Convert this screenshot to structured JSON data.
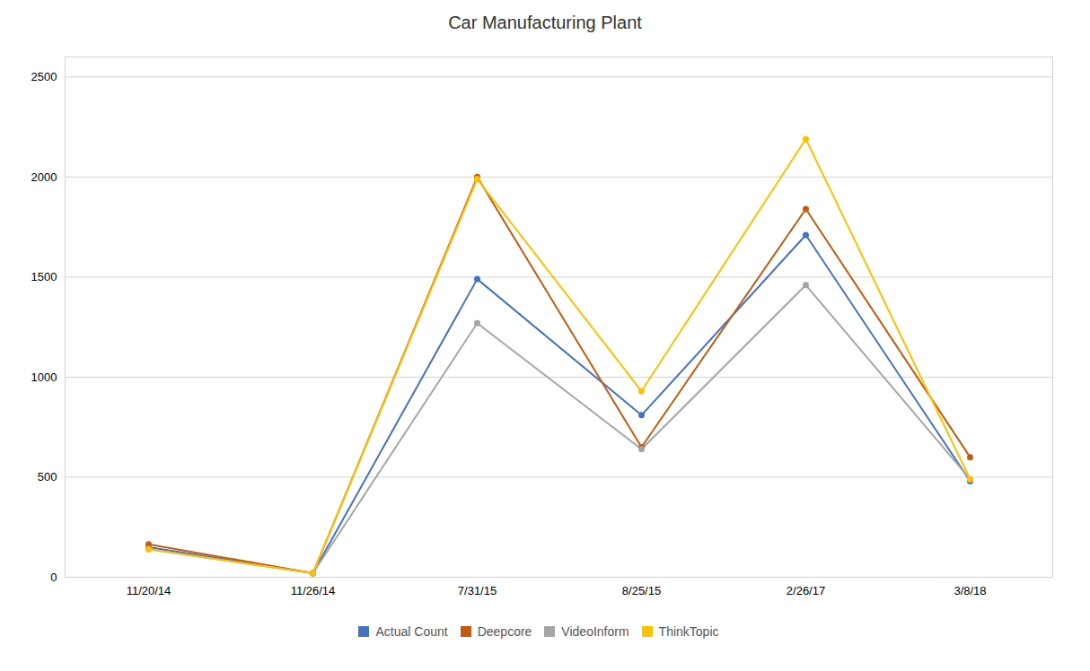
{
  "chart_data": {
    "type": "line",
    "title": "Car Manufacturing Plant",
    "categories": [
      "11/20/14",
      "11/26/14",
      "7/31/15",
      "8/25/15",
      "2/26/17",
      "3/8/18"
    ],
    "series": [
      {
        "name": "Actual Count",
        "color": "#4472C4",
        "marker": "circle",
        "values": [
          150,
          20,
          1490,
          810,
          1710,
          480
        ]
      },
      {
        "name": "Deepcore",
        "color": "#C55A11",
        "marker": "circle",
        "values": [
          165,
          20,
          2000,
          650,
          1840,
          600
        ]
      },
      {
        "name": "VideoInform",
        "color": "#A5A5A5",
        "marker": "circle",
        "values": [
          140,
          20,
          1270,
          640,
          1460,
          490
        ]
      },
      {
        "name": "ThinkTopic",
        "color": "#FFC000",
        "marker": "circle",
        "values": [
          140,
          20,
          1990,
          930,
          2190,
          490
        ]
      }
    ],
    "ylim": [
      0,
      2600
    ],
    "yticks": [
      0,
      500,
      1000,
      1500,
      2000,
      2500
    ],
    "grid": true,
    "legend": "bottom"
  }
}
